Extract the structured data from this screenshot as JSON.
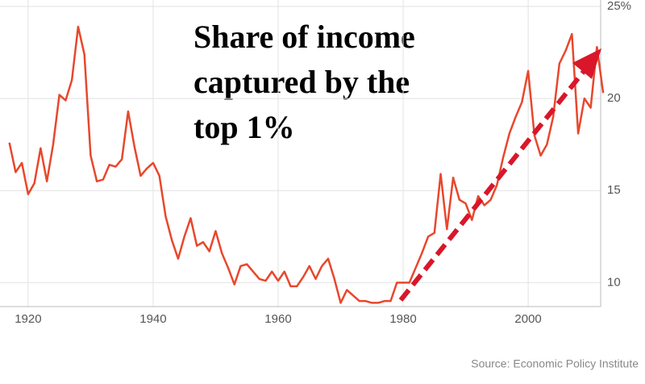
{
  "chart_data": {
    "type": "line",
    "title": [
      "Share of income",
      "captured by the",
      "top 1%"
    ],
    "source": "Source: Economic Policy Institute",
    "x": [
      1917,
      1918,
      1919,
      1920,
      1921,
      1922,
      1923,
      1924,
      1925,
      1926,
      1927,
      1928,
      1929,
      1930,
      1931,
      1932,
      1933,
      1934,
      1935,
      1936,
      1937,
      1938,
      1939,
      1940,
      1941,
      1942,
      1943,
      1944,
      1945,
      1946,
      1947,
      1948,
      1949,
      1950,
      1951,
      1952,
      1953,
      1954,
      1955,
      1956,
      1957,
      1958,
      1959,
      1960,
      1961,
      1962,
      1963,
      1964,
      1965,
      1966,
      1967,
      1968,
      1969,
      1970,
      1971,
      1972,
      1973,
      1974,
      1975,
      1976,
      1977,
      1978,
      1979,
      1980,
      1981,
      1982,
      1983,
      1984,
      1985,
      1986,
      1987,
      1988,
      1989,
      1990,
      1991,
      1992,
      1993,
      1994,
      1995,
      1996,
      1997,
      1998,
      1999,
      2000,
      2001,
      2002,
      2003,
      2004,
      2005,
      2006,
      2007,
      2008,
      2009,
      2010,
      2011,
      2012
    ],
    "series": [
      {
        "color": "#e8472c",
        "values": [
          17.6,
          16.0,
          16.5,
          14.8,
          15.4,
          17.3,
          15.5,
          17.5,
          20.2,
          19.9,
          21.0,
          23.9,
          22.4,
          16.9,
          15.5,
          15.6,
          16.4,
          16.3,
          16.7,
          19.3,
          17.4,
          15.8,
          16.2,
          16.5,
          15.8,
          13.6,
          12.3,
          11.3,
          12.5,
          13.5,
          12.0,
          12.2,
          11.7,
          12.8,
          11.6,
          10.8,
          9.9,
          10.9,
          11.0,
          10.6,
          10.2,
          10.1,
          10.6,
          10.1,
          10.6,
          9.8,
          9.8,
          10.3,
          10.9,
          10.2,
          10.9,
          11.3,
          10.2,
          8.9,
          9.6,
          9.3,
          9.0,
          9.0,
          8.9,
          8.9,
          9.0,
          9.0,
          10.0,
          10.0,
          10.0,
          10.8,
          11.6,
          12.5,
          12.7,
          15.9,
          12.9,
          15.7,
          14.5,
          14.3,
          13.4,
          14.7,
          14.2,
          14.5,
          15.3,
          16.8,
          18.1,
          19.0,
          19.8,
          21.5,
          18.0,
          16.9,
          17.5,
          19.0,
          21.9,
          22.6,
          23.5,
          18.1,
          20.0,
          19.5,
          22.8,
          20.3
        ]
      }
    ],
    "xlim": [
      1915.5,
      2012.5
    ],
    "xticks": [
      1920,
      1940,
      1960,
      1980,
      2000
    ],
    "ylim": [
      8.7,
      25.35
    ],
    "yticks": [
      10,
      15,
      20,
      {
        "value": 25,
        "label": "25%"
      }
    ],
    "grid": true
  }
}
